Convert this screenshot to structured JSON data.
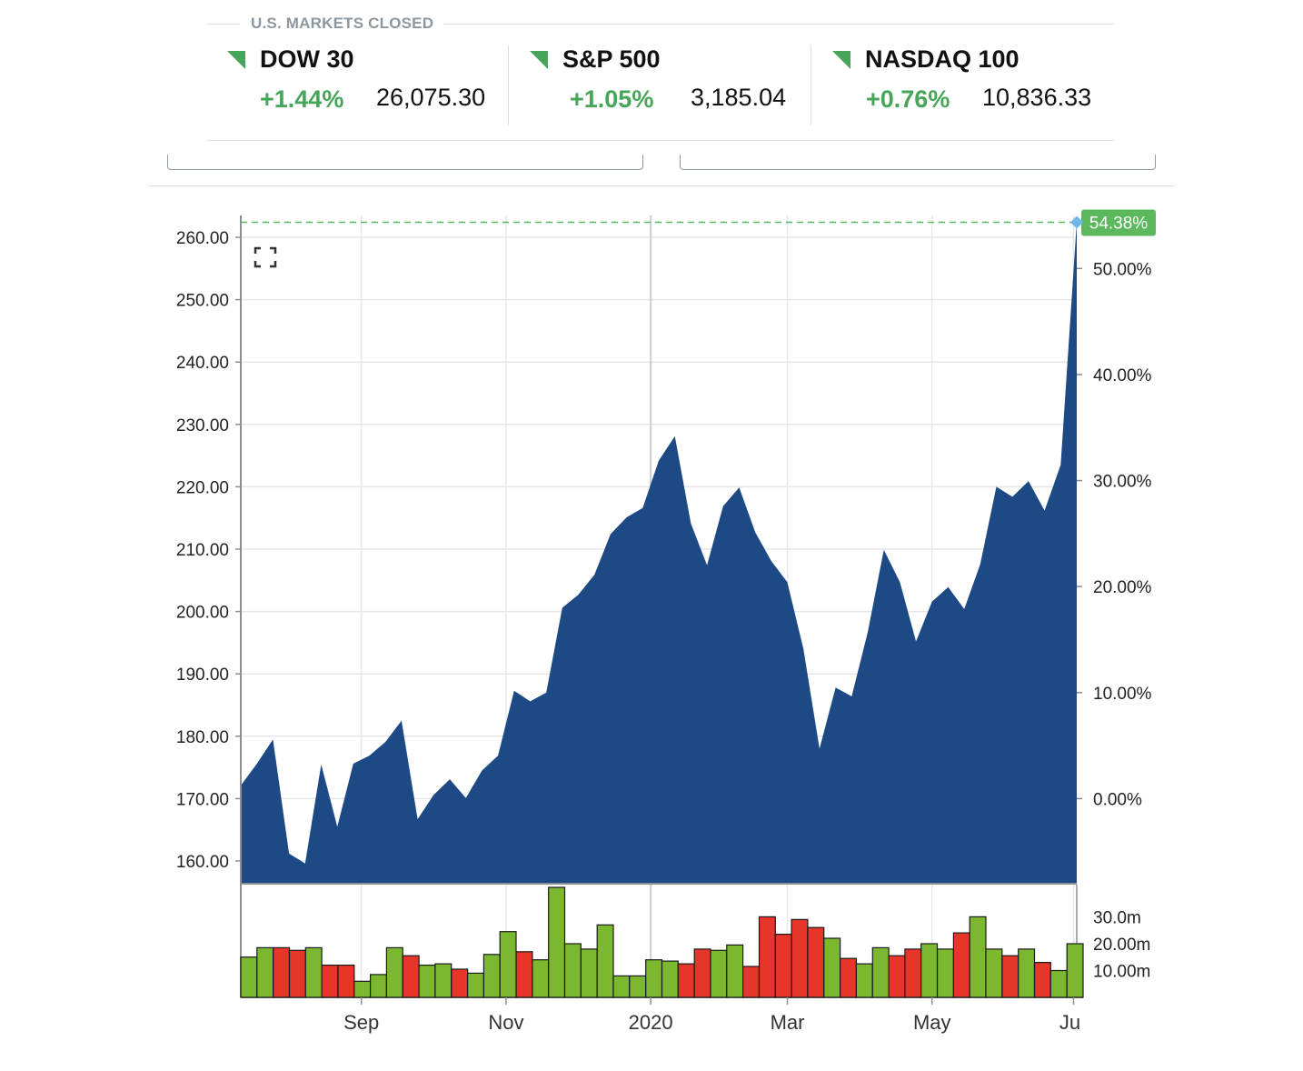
{
  "markets": {
    "status": "U.S. MARKETS CLOSED",
    "indices": [
      {
        "name": "DOW 30",
        "change": "+1.44%",
        "value": "26,075.30",
        "direction": "up"
      },
      {
        "name": "S&P 500",
        "change": "+1.05%",
        "value": "3,185.04",
        "direction": "up"
      },
      {
        "name": "NASDAQ 100",
        "change": "+0.76%",
        "value": "10,836.33",
        "direction": "up"
      }
    ]
  },
  "colors": {
    "area": "#1d4a85",
    "up": "#46a558",
    "volume_up": "#7cb82f",
    "volume_down": "#e8352a",
    "reference_line": "#5cb85c"
  },
  "icons": {
    "expand": "expand-icon"
  },
  "chart_data": [
    {
      "type": "area",
      "left_axis": {
        "ticks": [
          "160.00",
          "170.00",
          "180.00",
          "190.00",
          "200.00",
          "210.00",
          "220.00",
          "230.00",
          "240.00",
          "250.00",
          "260.00"
        ],
        "min": 156.5,
        "max": 263.5
      },
      "right_axis": {
        "ticks": [
          "0.00%",
          "10.00%",
          "20.00%",
          "30.00%",
          "40.00%",
          "50.00%"
        ],
        "base": 170.0
      },
      "x_labels": [
        "Sep",
        "Nov",
        "2020",
        "Mar",
        "May",
        "Ju"
      ],
      "x_label_index": [
        7.5,
        16.5,
        25.5,
        34,
        43,
        51.8
      ],
      "current_label": "54.38%",
      "grid": true,
      "values": [
        172.1,
        175.6,
        179.5,
        161.2,
        159.6,
        175.5,
        165.5,
        175.6,
        176.9,
        179.1,
        182.5,
        166.7,
        170.6,
        173.1,
        170.1,
        174.5,
        176.9,
        187.3,
        185.6,
        187.0,
        200.6,
        202.7,
        205.9,
        212.4,
        215.1,
        216.6,
        224.2,
        228.1,
        214.1,
        207.4,
        216.9,
        219.9,
        212.7,
        208.1,
        204.7,
        194.0,
        178.0,
        187.8,
        186.4,
        196.7,
        209.9,
        204.7,
        195.2,
        201.6,
        203.9,
        200.4,
        207.6,
        220.0,
        218.4,
        220.9,
        216.2,
        223.5,
        262.4
      ]
    },
    {
      "type": "bar",
      "y_ticks": [
        "10.00m",
        "20.00m",
        "30.0m"
      ],
      "y_tick_values": [
        10,
        20,
        30
      ],
      "ylim": [
        0,
        42
      ],
      "values": [
        15,
        18.5,
        18.5,
        17.5,
        18.5,
        12,
        12,
        6,
        8.5,
        18.5,
        15.5,
        12,
        12.5,
        10.5,
        9,
        16,
        24.5,
        17,
        14,
        41,
        20,
        18,
        27,
        8,
        8,
        14,
        13.5,
        12.5,
        18,
        17.5,
        19.5,
        11.5,
        30,
        23.5,
        29,
        26,
        22,
        14.5,
        12.5,
        18.5,
        15.5,
        18,
        20,
        18,
        24,
        30,
        18,
        15.5,
        18,
        13,
        10,
        20
      ],
      "directions": [
        "up",
        "up",
        "down",
        "down",
        "up",
        "down",
        "down",
        "up",
        "up",
        "up",
        "down",
        "up",
        "up",
        "down",
        "up",
        "up",
        "up",
        "down",
        "up",
        "up",
        "up",
        "up",
        "up",
        "up",
        "up",
        "up",
        "up",
        "down",
        "down",
        "up",
        "up",
        "down",
        "down",
        "down",
        "down",
        "down",
        "up",
        "down",
        "up",
        "up",
        "down",
        "down",
        "up",
        "up",
        "down",
        "up",
        "up",
        "down",
        "up",
        "down",
        "up",
        "up"
      ]
    }
  ]
}
